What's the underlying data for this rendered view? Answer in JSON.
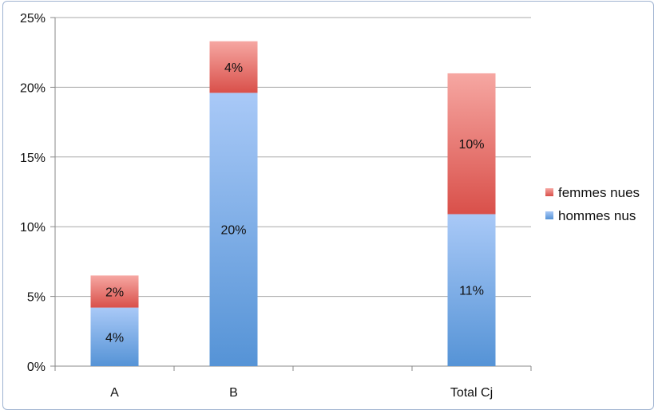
{
  "chart_data": {
    "type": "bar",
    "stacked": true,
    "categories": [
      "A",
      "B",
      "",
      "Total Cj"
    ],
    "series": [
      {
        "name": "hommes nus",
        "values": [
          4.2,
          19.6,
          null,
          10.9
        ],
        "labels": [
          "4%",
          "20%",
          "",
          "11%"
        ],
        "color_top": "#a9c9f7",
        "color_bottom": "#5593d6"
      },
      {
        "name": "femmes nues",
        "values": [
          2.3,
          3.7,
          null,
          10.1
        ],
        "labels": [
          "2%",
          "4%",
          "",
          "10%"
        ],
        "color_top": "#f6a7a2",
        "color_bottom": "#d9504a"
      }
    ],
    "ylim": [
      0,
      25
    ],
    "yticks": [
      0,
      5,
      10,
      15,
      20,
      25
    ],
    "ytick_labels": [
      "0%",
      "5%",
      "10%",
      "15%",
      "20%",
      "25%"
    ],
    "grid": true,
    "legend": "right",
    "title": "",
    "xlabel": "",
    "ylabel": ""
  }
}
